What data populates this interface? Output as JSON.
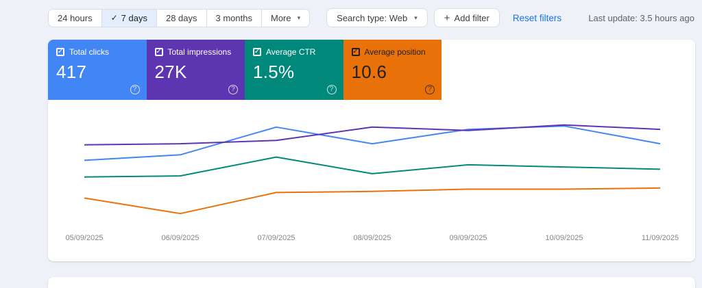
{
  "icons": {
    "checkmark": "✓",
    "dropdown_arrow": "▾",
    "plus": "+",
    "help": "?"
  },
  "toolbar": {
    "date_ranges": [
      {
        "label": "24 hours",
        "selected": false
      },
      {
        "label": "7 days",
        "selected": true
      },
      {
        "label": "28 days",
        "selected": false
      },
      {
        "label": "3 months",
        "selected": false
      },
      {
        "label": "More",
        "selected": false,
        "has_dropdown": true
      }
    ],
    "search_type": "Search type: Web",
    "add_filter": "Add filter",
    "reset_filters": "Reset filters",
    "last_update": "Last update: 3.5 hours ago"
  },
  "metrics": [
    {
      "label": "Total clicks",
      "value": "417",
      "color": "#4285f4",
      "text_color": "#ffffff",
      "checked": true
    },
    {
      "label": "Total impressions",
      "value": "27K",
      "color": "#5e35b1",
      "text_color": "#ffffff",
      "checked": true
    },
    {
      "label": "Average CTR",
      "value": "1.5%",
      "color": "#00897b",
      "text_color": "#ffffff",
      "checked": true
    },
    {
      "label": "Average position",
      "value": "10.6",
      "color": "#e8710a",
      "text_color": "#212121",
      "checked": true
    }
  ],
  "chart_data": {
    "type": "line",
    "x": [
      "05/09/2025",
      "06/09/2025",
      "07/09/2025",
      "08/09/2025",
      "09/09/2025",
      "10/09/2025",
      "11/09/2025"
    ],
    "series": [
      {
        "name": "Total clicks",
        "color": "#4285f4",
        "values": [
          59,
          64,
          89,
          74,
          87,
          90,
          74
        ]
      },
      {
        "name": "Total impressions",
        "color": "#5e35b1",
        "values": [
          73,
          74,
          77,
          89,
          86,
          91,
          87
        ]
      },
      {
        "name": "Average CTR",
        "color": "#00897b",
        "values": [
          44,
          45,
          62,
          47,
          55,
          53,
          51
        ]
      },
      {
        "name": "Average position",
        "color": "#e8710a",
        "values": [
          25,
          11,
          30,
          31,
          33,
          33,
          34
        ]
      }
    ],
    "ylim": [
      0,
      100
    ],
    "y_units": "relative height (no y-axis shown)",
    "grid": false,
    "legend": "tiles above chart act as legend"
  }
}
